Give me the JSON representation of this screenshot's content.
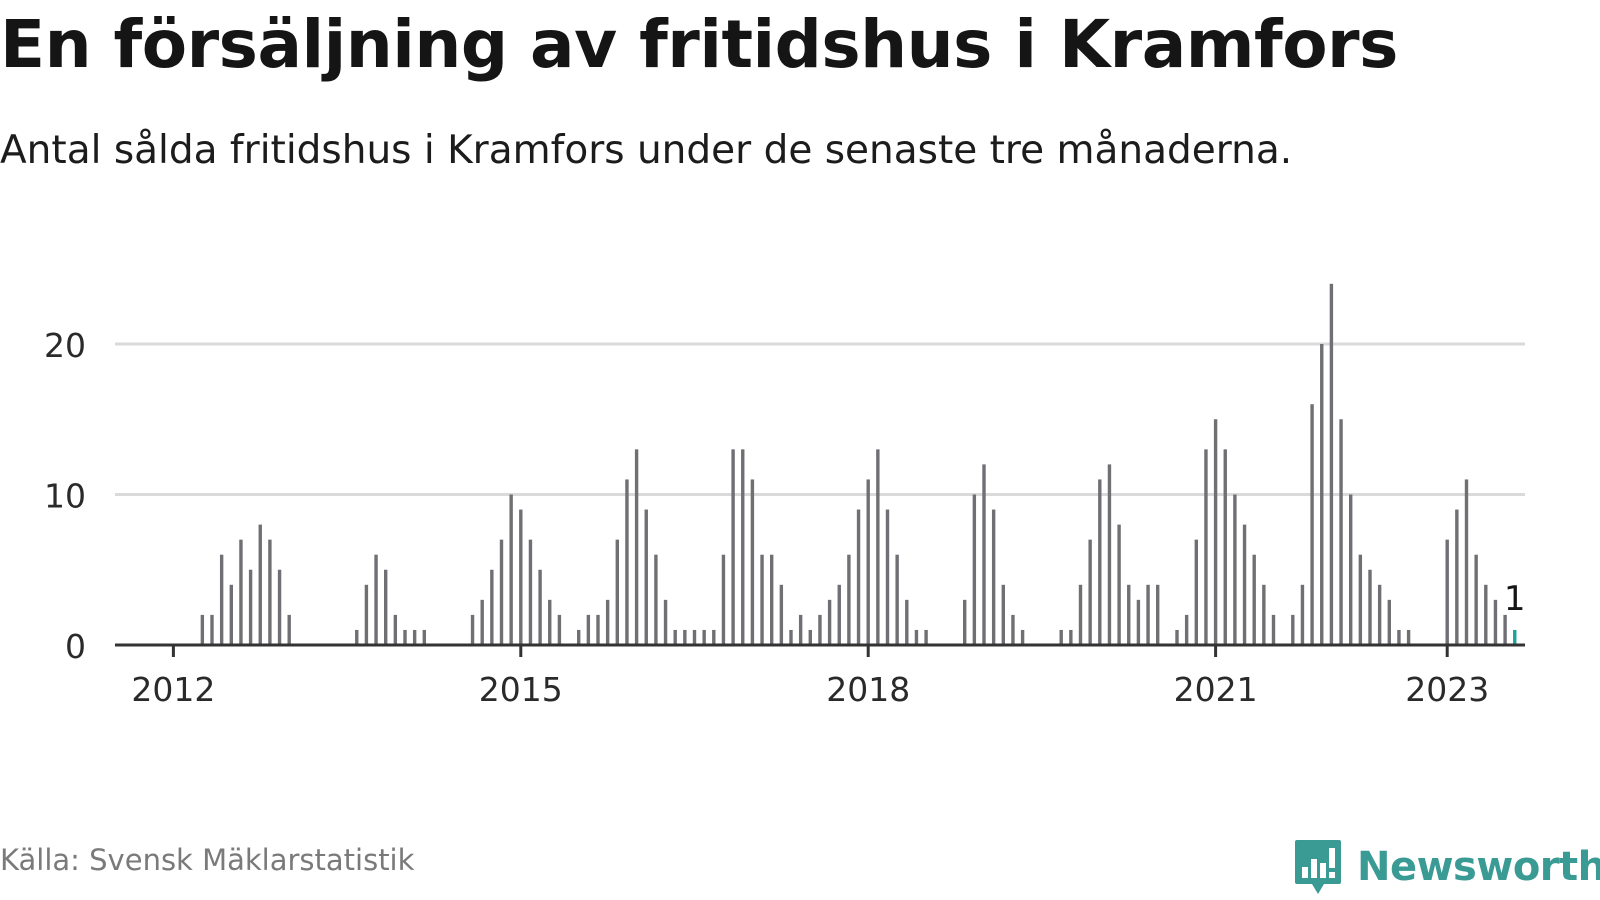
{
  "title": "En försäljning av fritidshus i Kramfors",
  "subtitle": "Antal sålda fritidshus i Kramfors under de senaste tre månaderna.",
  "source": "Källa: Svensk Mäklarstatistik",
  "brand": {
    "name": "Newsworthy",
    "color": "#3a9a94"
  },
  "colors": {
    "bar": "#6f6f74",
    "highlight": "#1aa39a",
    "grid": "#dadada",
    "axis": "#333333"
  },
  "chart_data": {
    "type": "bar",
    "start_month": "2011-07",
    "ylim": [
      0,
      24
    ],
    "yticks": [
      0,
      10,
      20
    ],
    "xticks": [
      "2012",
      "2015",
      "2018",
      "2021",
      "2023"
    ],
    "grid": true,
    "values": [
      0,
      0,
      0,
      0,
      0,
      0,
      0,
      0,
      0,
      2,
      2,
      6,
      4,
      7,
      5,
      8,
      7,
      5,
      2,
      0,
      0,
      0,
      0,
      0,
      0,
      1,
      4,
      6,
      5,
      2,
      1,
      1,
      1,
      0,
      0,
      0,
      0,
      2,
      3,
      5,
      7,
      10,
      9,
      7,
      5,
      3,
      2,
      0,
      1,
      2,
      2,
      3,
      7,
      11,
      13,
      9,
      6,
      3,
      1,
      1,
      1,
      1,
      1,
      6,
      13,
      13,
      11,
      6,
      6,
      4,
      1,
      2,
      1,
      2,
      3,
      4,
      6,
      9,
      11,
      13,
      9,
      6,
      3,
      1,
      1,
      0,
      0,
      0,
      3,
      10,
      12,
      9,
      4,
      2,
      1,
      0,
      0,
      0,
      1,
      1,
      4,
      7,
      11,
      12,
      8,
      4,
      3,
      4,
      4,
      0,
      1,
      2,
      7,
      13,
      15,
      13,
      10,
      8,
      6,
      4,
      2,
      0,
      2,
      4,
      16,
      20,
      24,
      15,
      10,
      6,
      5,
      4,
      3,
      1,
      1,
      0,
      0,
      0,
      7,
      9,
      11,
      6,
      4,
      3,
      2,
      1
    ],
    "highlight": {
      "label": "1",
      "value": 1
    }
  }
}
